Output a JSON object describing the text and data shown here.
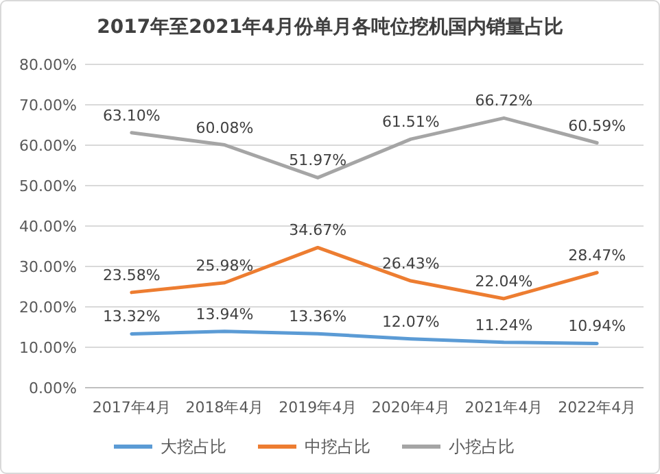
{
  "chart_data": {
    "type": "line",
    "title": "2017年至2021年4月份单月各吨位挖机国内销量占比",
    "categories": [
      "2017年4月",
      "2018年4月",
      "2019年4月",
      "2020年4月",
      "2021年4月",
      "2022年4月"
    ],
    "series": [
      {
        "name": "大挖占比",
        "color": "#5b9bd5",
        "values": [
          13.32,
          13.94,
          13.36,
          12.07,
          11.24,
          10.94
        ],
        "value_labels": [
          "13.32%",
          "13.94%",
          "13.36%",
          "12.07%",
          "11.24%",
          "10.94%"
        ]
      },
      {
        "name": "中挖占比",
        "color": "#ed7d31",
        "values": [
          23.58,
          25.98,
          34.67,
          26.43,
          22.04,
          28.47
        ],
        "value_labels": [
          "23.58%",
          "25.98%",
          "34.67%",
          "26.43%",
          "22.04%",
          "28.47%"
        ]
      },
      {
        "name": "小挖占比",
        "color": "#a5a5a5",
        "values": [
          63.1,
          60.08,
          51.97,
          61.51,
          66.72,
          60.59
        ],
        "value_labels": [
          "63.10%",
          "60.08%",
          "51.97%",
          "61.51%",
          "66.72%",
          "60.59%"
        ]
      }
    ],
    "ylim": [
      0,
      80
    ],
    "yticks": [
      {
        "value": 0,
        "label": "0.00%"
      },
      {
        "value": 10,
        "label": "10.00%"
      },
      {
        "value": 20,
        "label": "20.00%"
      },
      {
        "value": 30,
        "label": "30.00%"
      },
      {
        "value": 40,
        "label": "40.00%"
      },
      {
        "value": 50,
        "label": "50.00%"
      },
      {
        "value": 60,
        "label": "60.00%"
      },
      {
        "value": 70,
        "label": "70.00%"
      },
      {
        "value": 80,
        "label": "80.00%"
      }
    ],
    "grid": "y",
    "legend": "bottom",
    "marker": "none",
    "line_style": "solid"
  }
}
